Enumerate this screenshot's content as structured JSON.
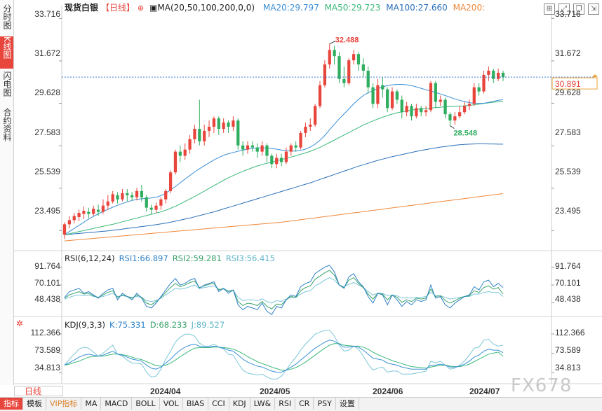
{
  "sidebar": {
    "tabs": [
      "分时图",
      "K线图",
      "闪电图",
      "合约资料"
    ],
    "active": 1
  },
  "header": {
    "title": "现货白银",
    "period": "【日线】",
    "add_symbol": "⊕",
    "ma_label": "MA(20,50,100,200,0,0)",
    "ma20": "MA20:29.797",
    "ma50": "MA50:29.723",
    "ma100": "MA100:27.660",
    "ma200": "MA200:"
  },
  "colors": {
    "up": "#e8453c",
    "down": "#2fae5f",
    "ma20": "#3a8fd6",
    "ma50": "#3ab87a",
    "ma100": "#2a6fb8",
    "ma200": "#f0883a",
    "rsi1": "#2f82c9",
    "rsi2": "#3aa26a",
    "rsi3": "#7cc6d8",
    "k": "#3a8fd6",
    "d": "#3ab87a",
    "j": "#7cc6d8"
  },
  "price_axis": {
    "ticks": [
      "33.716",
      "31.672",
      "29.628",
      "27.583",
      "25.539",
      "23.495"
    ],
    "last_price": "30.891"
  },
  "annotations": {
    "high": "32.488",
    "low": "28.548"
  },
  "rsi": {
    "label": "RSI(6,12,24)",
    "rsi1": "RSI1:66.897",
    "rsi2": "RSI2:59.281",
    "rsi3": "RSI3:56.415",
    "ticks": [
      "91.764",
      "70.101",
      "48.438"
    ]
  },
  "kdj": {
    "label": "KDJ(9,3,3)",
    "k": "K:75.331",
    "d": "D:68.233",
    "j": "J:89.527",
    "ticks": [
      "112.366",
      "73.589",
      "34.813"
    ]
  },
  "time_axis": [
    "2024/04",
    "2024/05",
    "2024/06",
    "2024/07"
  ],
  "period_selector": "日线",
  "bottom_tabs": [
    "指标",
    "模板",
    "VIP指标",
    "MA",
    "MACD",
    "BOLL",
    "VOL",
    "BIAS",
    "CCI",
    "KDJ",
    "LW&",
    "RSI",
    "CR",
    "PSY",
    "设置"
  ],
  "watermark": "FX678",
  "chart_data": {
    "type": "candlestick",
    "title": "现货白银",
    "ylim": [
      22.8,
      34.2
    ],
    "candles": [
      [
        23.3,
        23.8,
        23.1,
        23.9
      ],
      [
        23.8,
        24.0,
        23.6,
        24.2
      ],
      [
        24.0,
        24.2,
        23.85,
        24.35
      ],
      [
        24.15,
        24.35,
        23.95,
        24.5
      ],
      [
        24.3,
        24.45,
        24.05,
        24.65
      ],
      [
        24.4,
        24.3,
        24.1,
        24.6
      ],
      [
        24.3,
        24.55,
        24.2,
        24.7
      ],
      [
        24.5,
        24.4,
        24.2,
        24.75
      ],
      [
        24.4,
        24.7,
        24.3,
        25.0
      ],
      [
        24.7,
        24.9,
        24.5,
        25.2
      ],
      [
        24.9,
        25.25,
        24.8,
        25.4
      ],
      [
        25.2,
        25.0,
        24.8,
        25.35
      ],
      [
        25.0,
        25.3,
        24.9,
        25.5
      ],
      [
        25.3,
        25.2,
        24.9,
        25.5
      ],
      [
        25.2,
        25.1,
        24.95,
        25.35
      ],
      [
        25.1,
        25.4,
        24.95,
        25.55
      ],
      [
        25.4,
        25.1,
        24.9,
        25.7
      ],
      [
        25.1,
        24.6,
        24.4,
        25.2
      ],
      [
        24.6,
        24.5,
        24.3,
        24.75
      ],
      [
        24.5,
        24.7,
        24.35,
        24.85
      ],
      [
        24.7,
        25.0,
        24.5,
        25.1
      ],
      [
        25.0,
        25.4,
        24.8,
        25.5
      ],
      [
        25.4,
        26.3,
        25.3,
        26.4
      ],
      [
        26.3,
        27.3,
        26.2,
        27.4
      ],
      [
        27.3,
        27.1,
        26.8,
        27.6
      ],
      [
        27.1,
        27.4,
        26.9,
        27.7
      ],
      [
        27.4,
        27.9,
        27.2,
        28.1
      ],
      [
        27.9,
        28.4,
        27.7,
        28.6
      ],
      [
        28.4,
        27.8,
        27.6,
        29.8
      ],
      [
        27.8,
        28.3,
        27.6,
        28.6
      ],
      [
        28.3,
        28.5,
        28.0,
        28.8
      ],
      [
        28.5,
        28.9,
        28.2,
        29.0
      ],
      [
        28.9,
        28.4,
        28.1,
        29.0
      ],
      [
        28.4,
        28.7,
        28.2,
        28.9
      ],
      [
        28.7,
        28.5,
        28.2,
        28.8
      ],
      [
        28.5,
        28.8,
        28.3,
        29.0
      ],
      [
        28.8,
        27.6,
        27.4,
        28.9
      ],
      [
        27.6,
        27.4,
        27.1,
        27.8
      ],
      [
        27.4,
        27.6,
        27.2,
        27.8
      ],
      [
        27.6,
        27.5,
        27.3,
        27.8
      ],
      [
        27.5,
        27.3,
        27.0,
        27.7
      ],
      [
        27.3,
        27.6,
        27.1,
        27.8
      ],
      [
        27.6,
        27.1,
        26.8,
        27.7
      ],
      [
        27.1,
        26.7,
        26.5,
        27.2
      ],
      [
        26.7,
        27.0,
        26.5,
        27.2
      ],
      [
        27.0,
        26.8,
        26.6,
        27.2
      ],
      [
        26.8,
        27.3,
        26.7,
        27.5
      ],
      [
        27.3,
        27.6,
        27.1,
        27.7
      ],
      [
        27.6,
        27.5,
        27.3,
        27.8
      ],
      [
        27.5,
        28.2,
        27.4,
        28.3
      ],
      [
        28.2,
        28.5,
        28.0,
        28.7
      ],
      [
        28.5,
        28.6,
        28.3,
        28.9
      ],
      [
        28.6,
        29.5,
        28.5,
        29.6
      ],
      [
        29.5,
        30.5,
        29.4,
        30.7
      ],
      [
        30.5,
        31.5,
        30.4,
        31.7
      ],
      [
        31.5,
        32.2,
        31.3,
        32.49
      ],
      [
        32.2,
        31.9,
        31.5,
        32.4
      ],
      [
        31.9,
        30.8,
        30.6,
        32.1
      ],
      [
        30.8,
        30.6,
        30.4,
        31.4
      ],
      [
        30.6,
        31.7,
        30.5,
        31.8
      ],
      [
        31.7,
        32.0,
        31.5,
        32.2
      ],
      [
        32.0,
        31.5,
        31.2,
        32.1
      ],
      [
        31.5,
        31.2,
        30.9,
        31.8
      ],
      [
        31.2,
        30.4,
        30.1,
        31.4
      ],
      [
        30.4,
        29.6,
        29.4,
        30.6
      ],
      [
        29.6,
        30.5,
        29.4,
        30.8
      ],
      [
        30.5,
        30.3,
        29.9,
        30.9
      ],
      [
        30.3,
        29.4,
        29.2,
        30.4
      ],
      [
        29.4,
        30.2,
        29.3,
        30.4
      ],
      [
        30.2,
        29.8,
        29.6,
        30.3
      ],
      [
        29.8,
        29.2,
        28.9,
        30.0
      ],
      [
        29.2,
        29.5,
        29.0,
        29.7
      ],
      [
        29.5,
        29.0,
        28.8,
        29.6
      ],
      [
        29.0,
        29.4,
        28.9,
        29.6
      ],
      [
        29.4,
        29.2,
        29.0,
        29.5
      ],
      [
        29.2,
        29.3,
        29.0,
        29.5
      ],
      [
        29.3,
        30.6,
        29.2,
        30.7
      ],
      [
        30.6,
        29.7,
        29.4,
        30.7
      ],
      [
        29.7,
        29.8,
        29.5,
        30.0
      ],
      [
        29.8,
        29.1,
        28.9,
        29.9
      ],
      [
        29.1,
        28.8,
        28.55,
        29.2
      ],
      [
        28.8,
        29.0,
        28.6,
        29.2
      ],
      [
        29.0,
        29.2,
        28.9,
        29.5
      ],
      [
        29.2,
        29.5,
        29.1,
        29.7
      ],
      [
        29.5,
        29.6,
        29.3,
        29.8
      ],
      [
        29.6,
        30.4,
        29.5,
        30.6
      ],
      [
        30.4,
        30.2,
        30.0,
        30.6
      ],
      [
        30.2,
        31.0,
        30.1,
        31.2
      ],
      [
        31.0,
        31.2,
        30.7,
        31.4
      ],
      [
        31.2,
        30.8,
        30.6,
        31.3
      ],
      [
        30.8,
        31.1,
        30.7,
        31.3
      ],
      [
        31.1,
        30.89,
        30.7,
        31.2
      ]
    ],
    "ma20": [
      23.3,
      23.45,
      23.6,
      23.75,
      23.9,
      24.05,
      24.18,
      24.3,
      24.42,
      24.52,
      24.62,
      24.72,
      24.8,
      24.88,
      24.95,
      25.0,
      25.03,
      25.05,
      25.07,
      25.1,
      25.18,
      25.3,
      25.45,
      25.62,
      25.8,
      25.98,
      26.15,
      26.32,
      26.48,
      26.62,
      26.76,
      26.9,
      27.02,
      27.12,
      27.2,
      27.26,
      27.32,
      27.37,
      27.42,
      27.46,
      27.48,
      27.48,
      27.47,
      27.45,
      27.42,
      27.38,
      27.35,
      27.33,
      27.33,
      27.36,
      27.42,
      27.52,
      27.66,
      27.85,
      28.08,
      28.35,
      28.62,
      28.88,
      29.12,
      29.36,
      29.6,
      29.82,
      30.0,
      30.14,
      30.24,
      30.34,
      30.42,
      30.48,
      30.52,
      30.54,
      30.54,
      30.52,
      30.48,
      30.42,
      30.35,
      30.28,
      30.22,
      30.15,
      30.08,
      30.0,
      29.92,
      29.84,
      29.77,
      29.71,
      29.66,
      29.63,
      29.62,
      29.63,
      29.67,
      29.72,
      29.77,
      29.8
    ],
    "ma50": [
      23.3,
      23.35,
      23.4,
      23.45,
      23.5,
      23.55,
      23.6,
      23.65,
      23.7,
      23.75,
      23.8,
      23.86,
      23.92,
      23.98,
      24.04,
      24.1,
      24.16,
      24.22,
      24.28,
      24.34,
      24.4,
      24.48,
      24.57,
      24.67,
      24.78,
      24.9,
      25.02,
      25.14,
      25.27,
      25.4,
      25.53,
      25.66,
      25.79,
      25.92,
      26.04,
      26.15,
      26.25,
      26.35,
      26.44,
      26.53,
      26.61,
      26.68,
      26.74,
      26.8,
      26.86,
      26.92,
      26.98,
      27.04,
      27.1,
      27.17,
      27.24,
      27.32,
      27.41,
      27.51,
      27.62,
      27.74,
      27.86,
      27.98,
      28.1,
      28.22,
      28.34,
      28.46,
      28.58,
      28.68,
      28.78,
      28.87,
      28.96,
      29.04,
      29.11,
      29.17,
      29.22,
      29.26,
      29.3,
      29.33,
      29.36,
      29.38,
      29.4,
      29.42,
      29.44,
      29.46,
      29.47,
      29.48,
      29.49,
      29.51,
      29.53,
      29.56,
      29.59,
      29.62,
      29.65,
      29.68,
      29.7,
      29.72
    ],
    "ma100": [
      23.3,
      23.32,
      23.34,
      23.36,
      23.38,
      23.4,
      23.42,
      23.44,
      23.46,
      23.48,
      23.51,
      23.54,
      23.57,
      23.6,
      23.63,
      23.66,
      23.69,
      23.72,
      23.75,
      23.78,
      23.82,
      23.86,
      23.9,
      23.95,
      24.0,
      24.05,
      24.1,
      24.16,
      24.22,
      24.28,
      24.34,
      24.4,
      24.47,
      24.54,
      24.61,
      24.68,
      24.75,
      24.82,
      24.89,
      24.96,
      25.03,
      25.1,
      25.17,
      25.24,
      25.31,
      25.38,
      25.45,
      25.52,
      25.59,
      25.66,
      25.73,
      25.8,
      25.88,
      25.96,
      26.04,
      26.12,
      26.2,
      26.28,
      26.36,
      26.44,
      26.52,
      26.6,
      26.67,
      26.74,
      26.81,
      26.88,
      26.94,
      27.0,
      27.06,
      27.11,
      27.16,
      27.21,
      27.26,
      27.31,
      27.36,
      27.4,
      27.44,
      27.48,
      27.52,
      27.55,
      27.58,
      27.61,
      27.63,
      27.65,
      27.66,
      27.67,
      27.68,
      27.68,
      27.67,
      27.67,
      27.66,
      27.66
    ],
    "ma200": [
      23.0,
      23.02,
      23.04,
      23.06,
      23.08,
      23.1,
      23.12,
      23.14,
      23.16,
      23.18,
      23.2,
      23.22,
      23.24,
      23.26,
      23.28,
      23.3,
      23.32,
      23.34,
      23.36,
      23.38,
      23.4,
      23.42,
      23.44,
      23.46,
      23.48,
      23.5,
      23.52,
      23.54,
      23.56,
      23.58,
      23.6,
      23.62,
      23.64,
      23.66,
      23.68,
      23.7,
      23.72,
      23.74,
      23.76,
      23.78,
      23.8,
      23.82,
      23.84,
      23.86,
      23.88,
      23.9,
      23.93,
      23.96,
      23.99,
      24.02,
      24.05,
      24.08,
      24.11,
      24.14,
      24.17,
      24.2,
      24.23,
      24.26,
      24.29,
      24.32,
      24.35,
      24.38,
      24.41,
      24.44,
      24.47,
      24.5,
      24.53,
      24.56,
      24.59,
      24.62,
      24.65,
      24.68,
      24.71,
      24.74,
      24.77,
      24.8,
      24.83,
      24.86,
      24.89,
      24.92,
      24.95,
      24.98,
      25.01,
      25.04,
      25.07,
      25.1,
      25.13,
      25.16,
      25.19,
      25.22,
      25.25,
      25.28
    ],
    "rsi_range": [
      30,
      100
    ],
    "rsi1": [
      55,
      62,
      64,
      66,
      60,
      62,
      58,
      54,
      60,
      64,
      66,
      52,
      60,
      56,
      52,
      60,
      54,
      44,
      42,
      48,
      56,
      64,
      72,
      78,
      70,
      72,
      76,
      78,
      66,
      70,
      72,
      74,
      62,
      66,
      60,
      64,
      46,
      40,
      44,
      42,
      40,
      48,
      38,
      34,
      44,
      42,
      52,
      58,
      56,
      68,
      72,
      74,
      84,
      88,
      92,
      94,
      86,
      70,
      66,
      80,
      84,
      74,
      68,
      56,
      48,
      60,
      58,
      46,
      58,
      52,
      44,
      50,
      46,
      52,
      50,
      52,
      70,
      54,
      56,
      46,
      42,
      48,
      52,
      56,
      58,
      68,
      64,
      74,
      76,
      68,
      72,
      67
    ],
    "rsi2": [
      54,
      58,
      60,
      62,
      59,
      60,
      57,
      55,
      58,
      61,
      63,
      55,
      58,
      56,
      54,
      58,
      55,
      48,
      46,
      50,
      55,
      61,
      67,
      72,
      68,
      70,
      73,
      75,
      67,
      69,
      71,
      72,
      64,
      66,
      62,
      64,
      50,
      45,
      48,
      47,
      45,
      50,
      44,
      41,
      47,
      46,
      52,
      56,
      55,
      63,
      67,
      69,
      77,
      81,
      85,
      88,
      82,
      70,
      67,
      76,
      79,
      72,
      67,
      59,
      53,
      60,
      59,
      52,
      58,
      55,
      49,
      52,
      50,
      54,
      53,
      54,
      65,
      56,
      57,
      51,
      48,
      51,
      54,
      56,
      57,
      63,
      61,
      67,
      69,
      65,
      67,
      59
    ],
    "rsi3": [
      53,
      55,
      57,
      58,
      57,
      58,
      56,
      55,
      56,
      58,
      60,
      56,
      57,
      56,
      55,
      56,
      55,
      51,
      50,
      51,
      54,
      58,
      62,
      66,
      65,
      66,
      68,
      70,
      66,
      67,
      68,
      69,
      65,
      65,
      63,
      64,
      55,
      51,
      52,
      52,
      51,
      53,
      50,
      48,
      51,
      50,
      53,
      55,
      55,
      59,
      62,
      63,
      69,
      72,
      76,
      79,
      76,
      70,
      68,
      71,
      73,
      70,
      67,
      62,
      58,
      60,
      60,
      57,
      58,
      57,
      54,
      55,
      54,
      55,
      55,
      56,
      61,
      57,
      57,
      55,
      53,
      54,
      55,
      56,
      56,
      59,
      59,
      61,
      62,
      61,
      61,
      56
    ],
    "kdj_range": [
      10,
      125
    ],
    "k": [
      50,
      55,
      60,
      66,
      70,
      72,
      70,
      68,
      70,
      74,
      78,
      72,
      70,
      66,
      62,
      60,
      58,
      50,
      44,
      42,
      46,
      54,
      62,
      72,
      80,
      86,
      90,
      92,
      88,
      86,
      86,
      88,
      86,
      84,
      80,
      78,
      70,
      62,
      56,
      52,
      48,
      46,
      42,
      38,
      36,
      36,
      40,
      46,
      52,
      60,
      68,
      76,
      84,
      90,
      96,
      100,
      98,
      92,
      86,
      86,
      88,
      86,
      80,
      72,
      64,
      62,
      60,
      54,
      52,
      50,
      46,
      44,
      42,
      42,
      42,
      42,
      50,
      50,
      52,
      50,
      46,
      46,
      48,
      52,
      58,
      66,
      70,
      78,
      82,
      80,
      80,
      75
    ],
    "d": [
      50,
      52,
      55,
      58,
      62,
      66,
      67,
      68,
      68,
      70,
      72,
      72,
      71,
      69,
      66,
      63,
      61,
      57,
      53,
      49,
      48,
      50,
      54,
      60,
      67,
      73,
      79,
      84,
      85,
      85,
      85,
      86,
      86,
      85,
      84,
      82,
      78,
      73,
      67,
      62,
      57,
      53,
      50,
      46,
      43,
      40,
      40,
      42,
      45,
      50,
      56,
      63,
      70,
      77,
      84,
      90,
      93,
      93,
      90,
      89,
      88,
      88,
      86,
      82,
      76,
      71,
      67,
      63,
      59,
      56,
      53,
      50,
      47,
      46,
      45,
      44,
      46,
      48,
      49,
      50,
      48,
      47,
      47,
      49,
      52,
      57,
      62,
      67,
      72,
      74,
      76,
      68
    ],
    "j": [
      50,
      62,
      72,
      82,
      86,
      84,
      76,
      68,
      74,
      82,
      90,
      72,
      68,
      60,
      54,
      54,
      52,
      36,
      26,
      28,
      42,
      62,
      78,
      96,
      106,
      112,
      112,
      108,
      94,
      88,
      88,
      92,
      86,
      82,
      72,
      70,
      54,
      40,
      34,
      32,
      30,
      32,
      26,
      22,
      22,
      28,
      40,
      54,
      66,
      80,
      92,
      102,
      112,
      116,
      120,
      120,
      108,
      90,
      78,
      80,
      88,
      82,
      68,
      52,
      40,
      44,
      46,
      36,
      38,
      38,
      32,
      32,
      32,
      34,
      36,
      38,
      58,
      54,
      58,
      50,
      42,
      44,
      50,
      58,
      70,
      84,
      86,
      100,
      102,
      92,
      88,
      90
    ]
  }
}
